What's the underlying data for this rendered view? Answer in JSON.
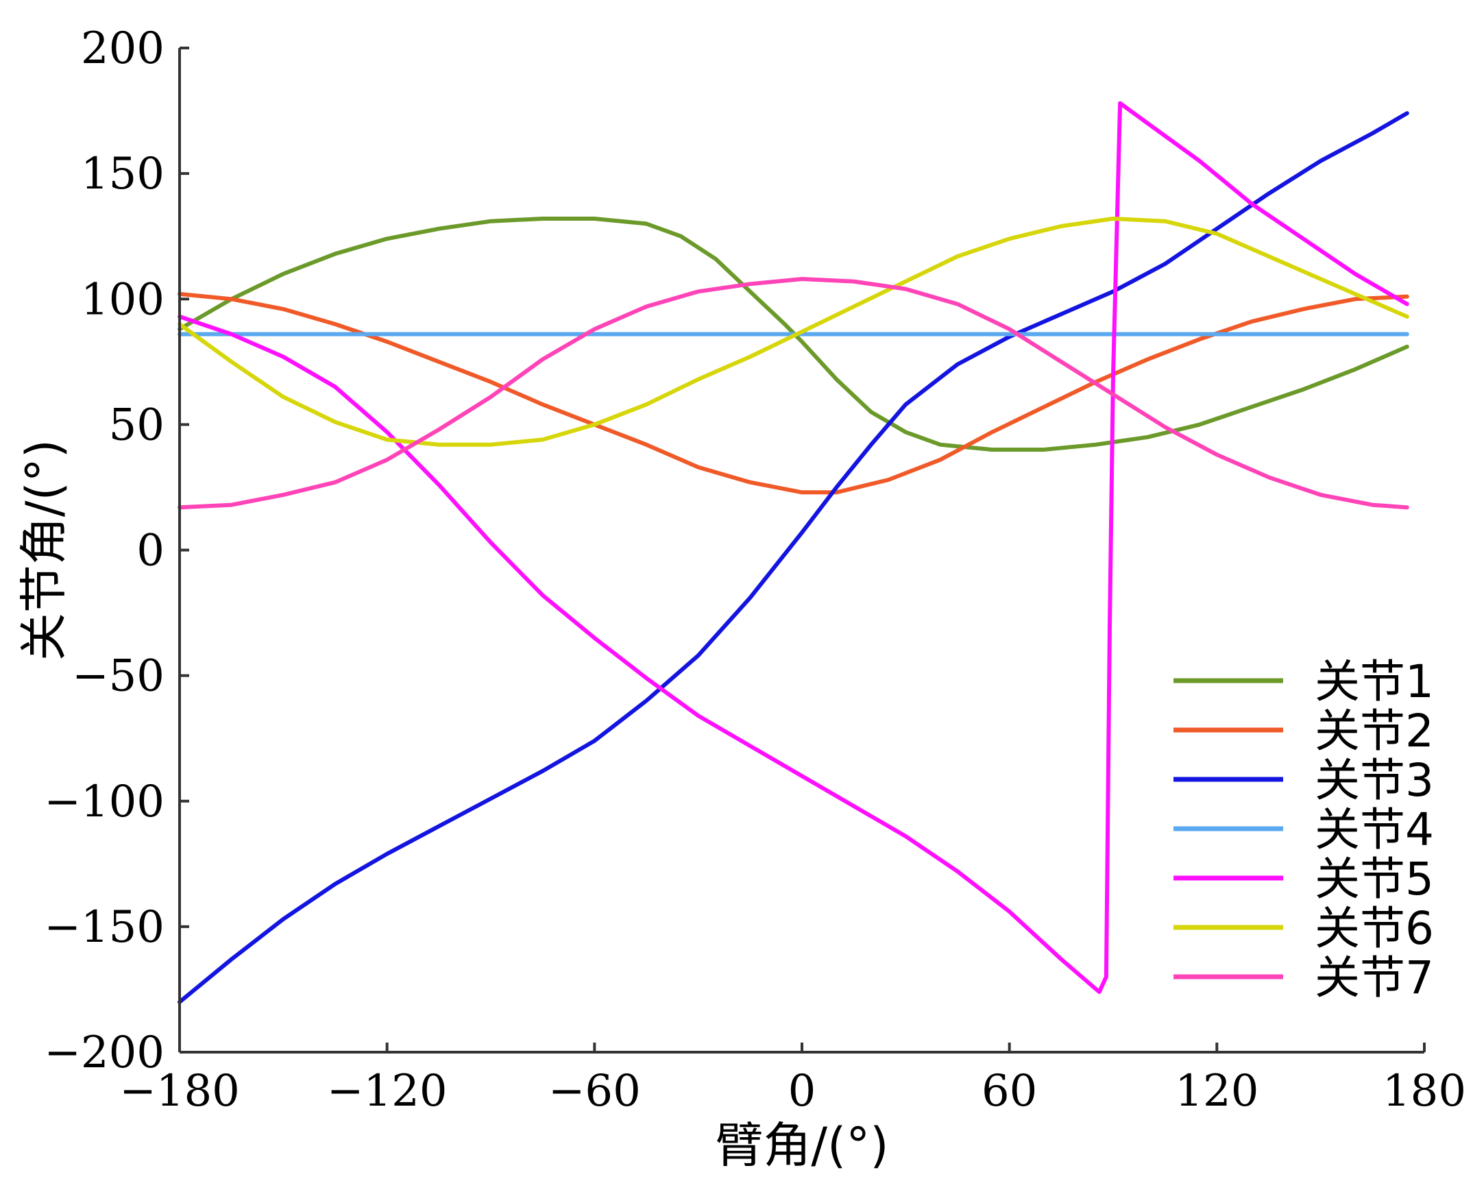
{
  "chart_data": {
    "type": "line",
    "xlabel": "臂角/(°)",
    "ylabel": "关节角/(°)",
    "xlim": [
      -180,
      180
    ],
    "ylim": [
      -200,
      200
    ],
    "xticks": [
      -180,
      -120,
      -60,
      0,
      60,
      120,
      180
    ],
    "yticks": [
      -200,
      -150,
      -100,
      -50,
      0,
      50,
      100,
      150,
      200
    ],
    "xtick_labels": [
      "−180",
      "−120",
      "−60",
      "0",
      "60",
      "120",
      "180"
    ],
    "ytick_labels": [
      "−200",
      "−150",
      "−100",
      "−50",
      "0",
      "50",
      "100",
      "150",
      "200"
    ],
    "grid": false,
    "legend_position": "bottom-right",
    "series": [
      {
        "name": "关节1",
        "color": "#6b9a2a",
        "points": [
          [
            -180,
            88
          ],
          [
            -165,
            100
          ],
          [
            -150,
            110
          ],
          [
            -135,
            118
          ],
          [
            -120,
            124
          ],
          [
            -105,
            128
          ],
          [
            -90,
            131
          ],
          [
            -75,
            132
          ],
          [
            -60,
            132
          ],
          [
            -45,
            130
          ],
          [
            -35,
            125
          ],
          [
            -25,
            116
          ],
          [
            -15,
            103
          ],
          [
            -5,
            90
          ],
          [
            0,
            83
          ],
          [
            10,
            68
          ],
          [
            20,
            55
          ],
          [
            30,
            47
          ],
          [
            40,
            42
          ],
          [
            55,
            40
          ],
          [
            70,
            40
          ],
          [
            85,
            42
          ],
          [
            100,
            45
          ],
          [
            115,
            50
          ],
          [
            130,
            57
          ],
          [
            145,
            64
          ],
          [
            160,
            72
          ],
          [
            175,
            81
          ]
        ]
      },
      {
        "name": "关节2",
        "color": "#f05a28",
        "points": [
          [
            -180,
            102
          ],
          [
            -165,
            100
          ],
          [
            -150,
            96
          ],
          [
            -135,
            90
          ],
          [
            -120,
            83
          ],
          [
            -105,
            75
          ],
          [
            -90,
            67
          ],
          [
            -75,
            58
          ],
          [
            -60,
            50
          ],
          [
            -45,
            42
          ],
          [
            -30,
            33
          ],
          [
            -15,
            27
          ],
          [
            0,
            23
          ],
          [
            10,
            23
          ],
          [
            25,
            28
          ],
          [
            40,
            36
          ],
          [
            55,
            47
          ],
          [
            70,
            57
          ],
          [
            85,
            67
          ],
          [
            100,
            76
          ],
          [
            115,
            84
          ],
          [
            130,
            91
          ],
          [
            145,
            96
          ],
          [
            160,
            100
          ],
          [
            175,
            101
          ]
        ]
      },
      {
        "name": "关节3",
        "color": "#1414e0",
        "points": [
          [
            -180,
            -180
          ],
          [
            -165,
            -163
          ],
          [
            -150,
            -147
          ],
          [
            -135,
            -133
          ],
          [
            -120,
            -121
          ],
          [
            -105,
            -110
          ],
          [
            -90,
            -99
          ],
          [
            -75,
            -88
          ],
          [
            -60,
            -76
          ],
          [
            -45,
            -60
          ],
          [
            -30,
            -42
          ],
          [
            -15,
            -19
          ],
          [
            0,
            7
          ],
          [
            10,
            25
          ],
          [
            20,
            42
          ],
          [
            30,
            58
          ],
          [
            45,
            74
          ],
          [
            60,
            85
          ],
          [
            75,
            94
          ],
          [
            90,
            103
          ],
          [
            105,
            114
          ],
          [
            120,
            128
          ],
          [
            135,
            142
          ],
          [
            150,
            155
          ],
          [
            165,
            166
          ],
          [
            175,
            174
          ]
        ]
      },
      {
        "name": "关节4",
        "color": "#5aa8f0",
        "points": [
          [
            -180,
            86
          ],
          [
            175,
            86
          ]
        ]
      },
      {
        "name": "关节5",
        "color": "#ff10ff",
        "points": [
          [
            -180,
            93
          ],
          [
            -165,
            86
          ],
          [
            -150,
            77
          ],
          [
            -135,
            65
          ],
          [
            -120,
            47
          ],
          [
            -105,
            26
          ],
          [
            -90,
            3
          ],
          [
            -75,
            -18
          ],
          [
            -60,
            -35
          ],
          [
            -45,
            -51
          ],
          [
            -30,
            -66
          ],
          [
            -15,
            -78
          ],
          [
            0,
            -90
          ],
          [
            15,
            -102
          ],
          [
            30,
            -114
          ],
          [
            45,
            -128
          ],
          [
            60,
            -144
          ],
          [
            75,
            -163
          ],
          [
            86,
            -176
          ],
          [
            88,
            -170
          ],
          [
            89,
            -30
          ],
          [
            90,
            70
          ],
          [
            92,
            178
          ],
          [
            100,
            170
          ],
          [
            115,
            155
          ],
          [
            130,
            138
          ],
          [
            145,
            124
          ],
          [
            160,
            110
          ],
          [
            175,
            98
          ]
        ]
      },
      {
        "name": "关节6",
        "color": "#d6d60a",
        "points": [
          [
            -180,
            90
          ],
          [
            -165,
            75
          ],
          [
            -150,
            61
          ],
          [
            -135,
            51
          ],
          [
            -120,
            44
          ],
          [
            -105,
            42
          ],
          [
            -90,
            42
          ],
          [
            -75,
            44
          ],
          [
            -60,
            50
          ],
          [
            -45,
            58
          ],
          [
            -30,
            68
          ],
          [
            -15,
            77
          ],
          [
            0,
            87
          ],
          [
            15,
            97
          ],
          [
            30,
            107
          ],
          [
            45,
            117
          ],
          [
            60,
            124
          ],
          [
            75,
            129
          ],
          [
            90,
            132
          ],
          [
            105,
            131
          ],
          [
            120,
            126
          ],
          [
            135,
            117
          ],
          [
            150,
            108
          ],
          [
            165,
            99
          ],
          [
            175,
            93
          ]
        ]
      },
      {
        "name": "关节7",
        "color": "#ff44b8",
        "points": [
          [
            -180,
            17
          ],
          [
            -165,
            18
          ],
          [
            -150,
            22
          ],
          [
            -135,
            27
          ],
          [
            -120,
            36
          ],
          [
            -105,
            48
          ],
          [
            -90,
            61
          ],
          [
            -75,
            76
          ],
          [
            -60,
            88
          ],
          [
            -45,
            97
          ],
          [
            -30,
            103
          ],
          [
            -15,
            106
          ],
          [
            0,
            108
          ],
          [
            15,
            107
          ],
          [
            30,
            104
          ],
          [
            45,
            98
          ],
          [
            60,
            88
          ],
          [
            75,
            75
          ],
          [
            90,
            62
          ],
          [
            105,
            49
          ],
          [
            120,
            38
          ],
          [
            135,
            29
          ],
          [
            150,
            22
          ],
          [
            165,
            18
          ],
          [
            175,
            17
          ]
        ]
      }
    ]
  }
}
